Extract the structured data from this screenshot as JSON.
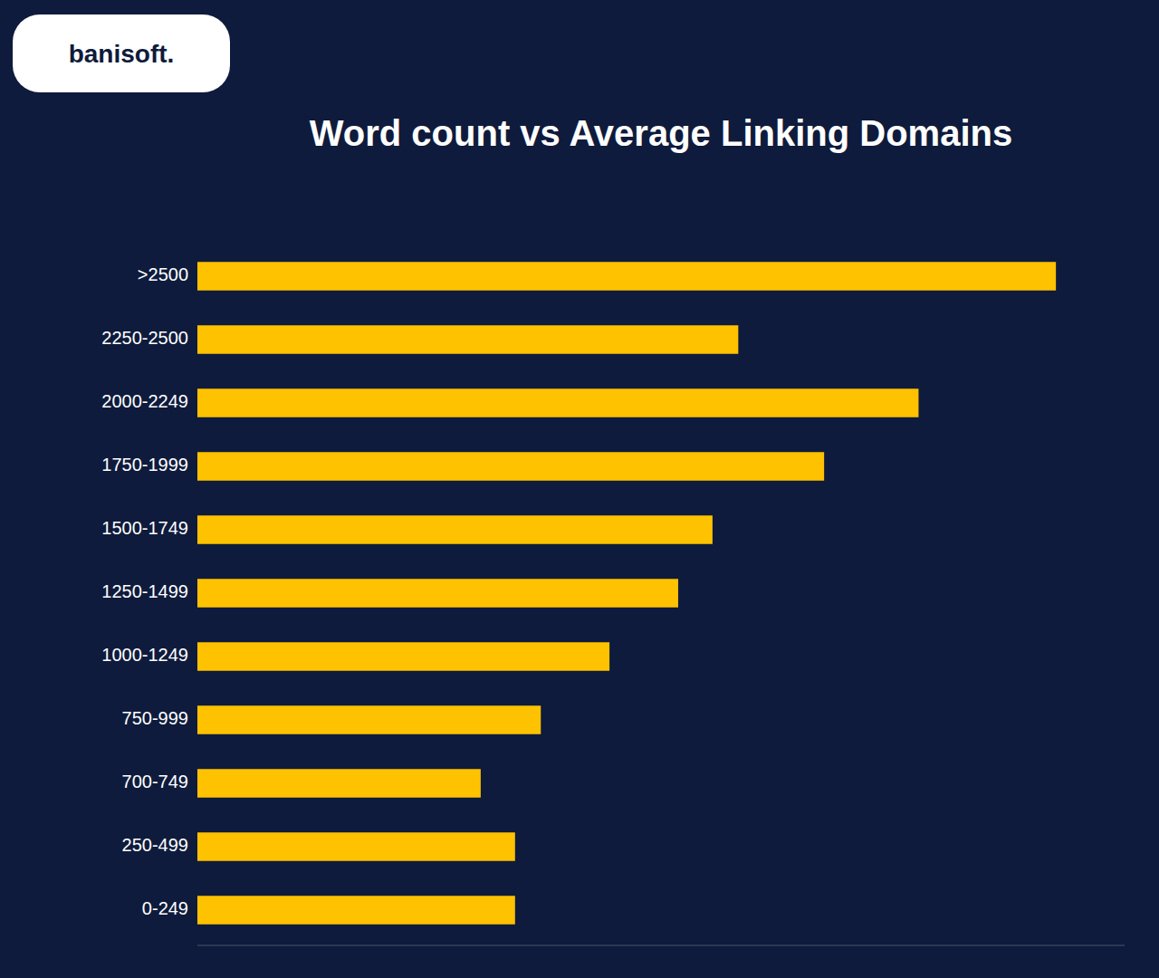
{
  "chart_data": {
    "type": "bar",
    "orientation": "horizontal",
    "title": "Word count vs Average Linking Domains",
    "categories": [
      ">2500",
      "2250-2500",
      "2000-2249",
      "1750-1999",
      "1500-1749",
      "1250-1499",
      "1000-1249",
      "750-999",
      "700-749",
      "250-499",
      "0-249"
    ],
    "values": [
      100,
      63,
      84,
      73,
      60,
      56,
      48,
      40,
      33,
      37,
      37
    ],
    "color": "#FFC200",
    "xlim": [
      0,
      108
    ],
    "tick_labels": "y",
    "grid": false,
    "annotations": [
      "banisoft."
    ]
  }
}
